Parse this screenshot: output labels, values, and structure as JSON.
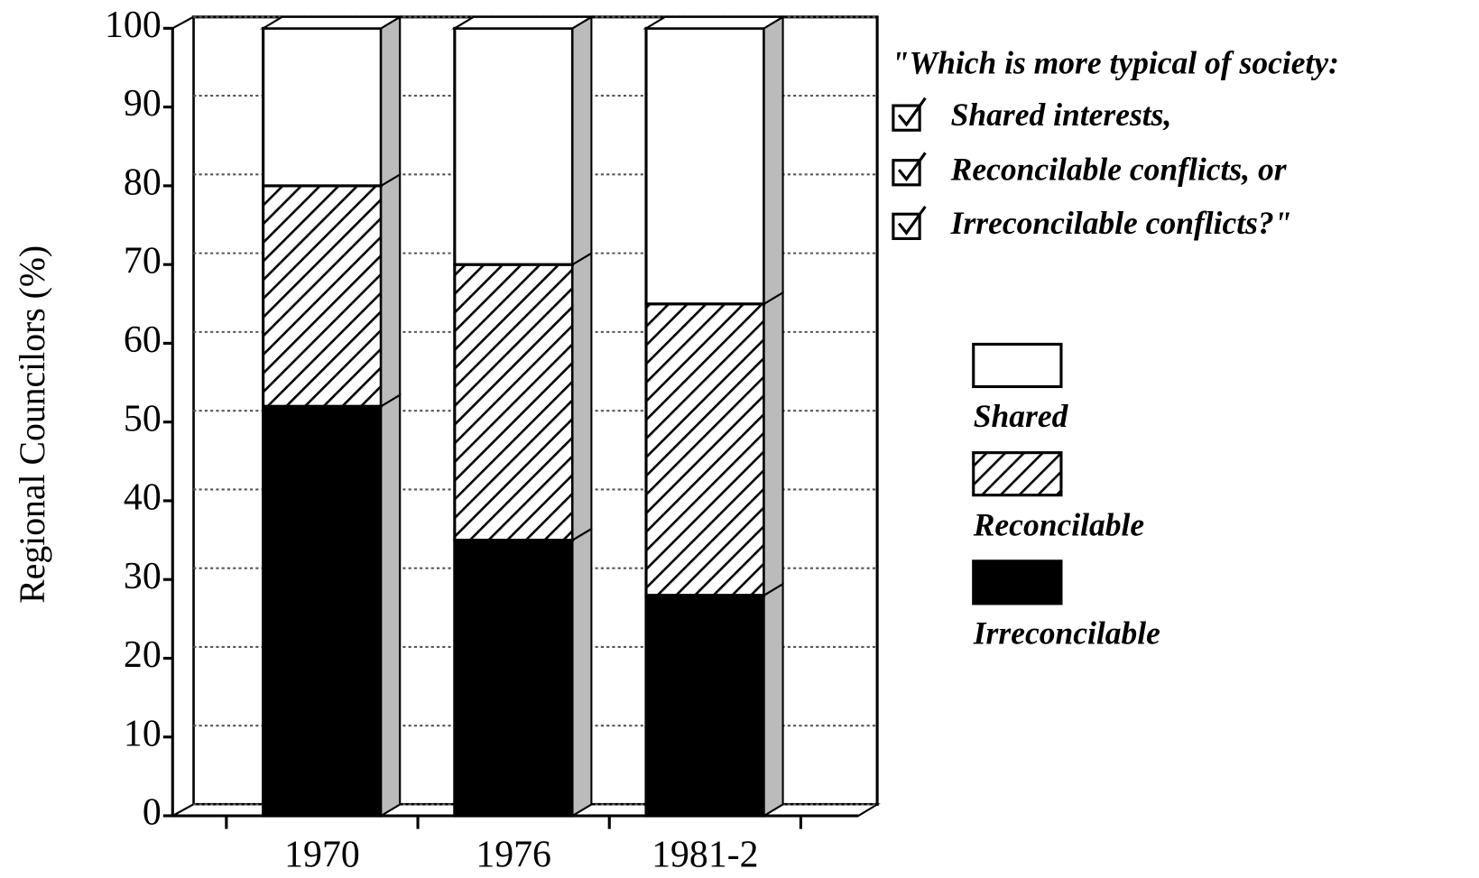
{
  "chart_data": {
    "type": "stacked_bar_3d",
    "y_label": "Regional Councilors (%)",
    "annotation": [
      "\"Which is more typical of society:",
      "Shared interests,",
      "Reconcilable conflicts, or",
      "Irreconcilable conflicts?\""
    ],
    "categories": [
      "1970",
      "1976",
      "1981-2"
    ],
    "series": [
      {
        "name": "Irreconcilable",
        "color": "#000000",
        "hatch": false,
        "values": [
          52,
          35,
          28
        ]
      },
      {
        "name": "Reconcilable",
        "color": "#ffffff",
        "hatch": true,
        "values": [
          28,
          35,
          37
        ]
      },
      {
        "name": "Shared",
        "color": "#ffffff",
        "hatch": false,
        "values": [
          20,
          30,
          35
        ]
      }
    ],
    "ylim": [
      0,
      100
    ],
    "yticks": [
      0,
      10,
      20,
      30,
      40,
      50,
      60,
      70,
      80,
      90,
      100
    ],
    "grid": true
  }
}
